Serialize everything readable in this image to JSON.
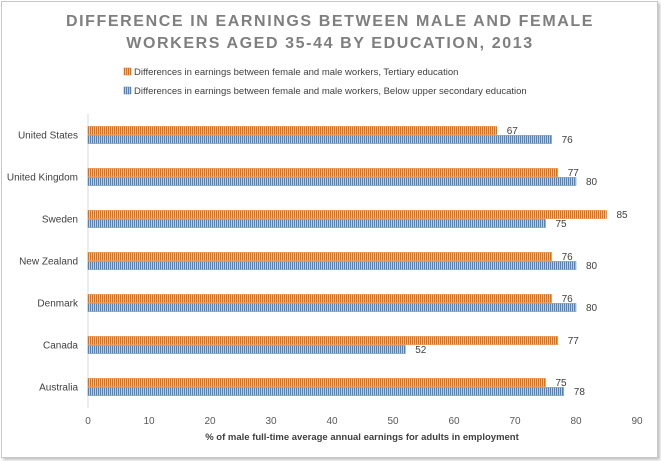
{
  "chart_data": {
    "type": "bar",
    "orientation": "horizontal",
    "title_lines": [
      "DIFFERENCE IN EARNINGS BETWEEN MALE AND FEMALE",
      "WORKERS AGED 35-44 BY EDUCATION, 2013"
    ],
    "categories": [
      "United States",
      "United Kingdom",
      "Sweden",
      "New Zealand",
      "Denmark",
      "Canada",
      "Australia"
    ],
    "series": [
      {
        "name": "Differences in earnings between female and male workers, Tertiary education",
        "color": "#f79646",
        "values": [
          67,
          77,
          85,
          76,
          76,
          77,
          75
        ]
      },
      {
        "name": "Differences in earnings between female and male workers, Below upper secondary education",
        "color": "#4f81bd",
        "values": [
          76,
          80,
          75,
          80,
          80,
          52,
          78
        ]
      }
    ],
    "xlabel": "% of male full-time average annual earnings for adults in employment",
    "ylabel": "",
    "xlim": [
      0,
      90
    ],
    "xticks": [
      0,
      10,
      20,
      30,
      40,
      50,
      60,
      70,
      80,
      90
    ],
    "legend_position": "top",
    "grid": false
  }
}
